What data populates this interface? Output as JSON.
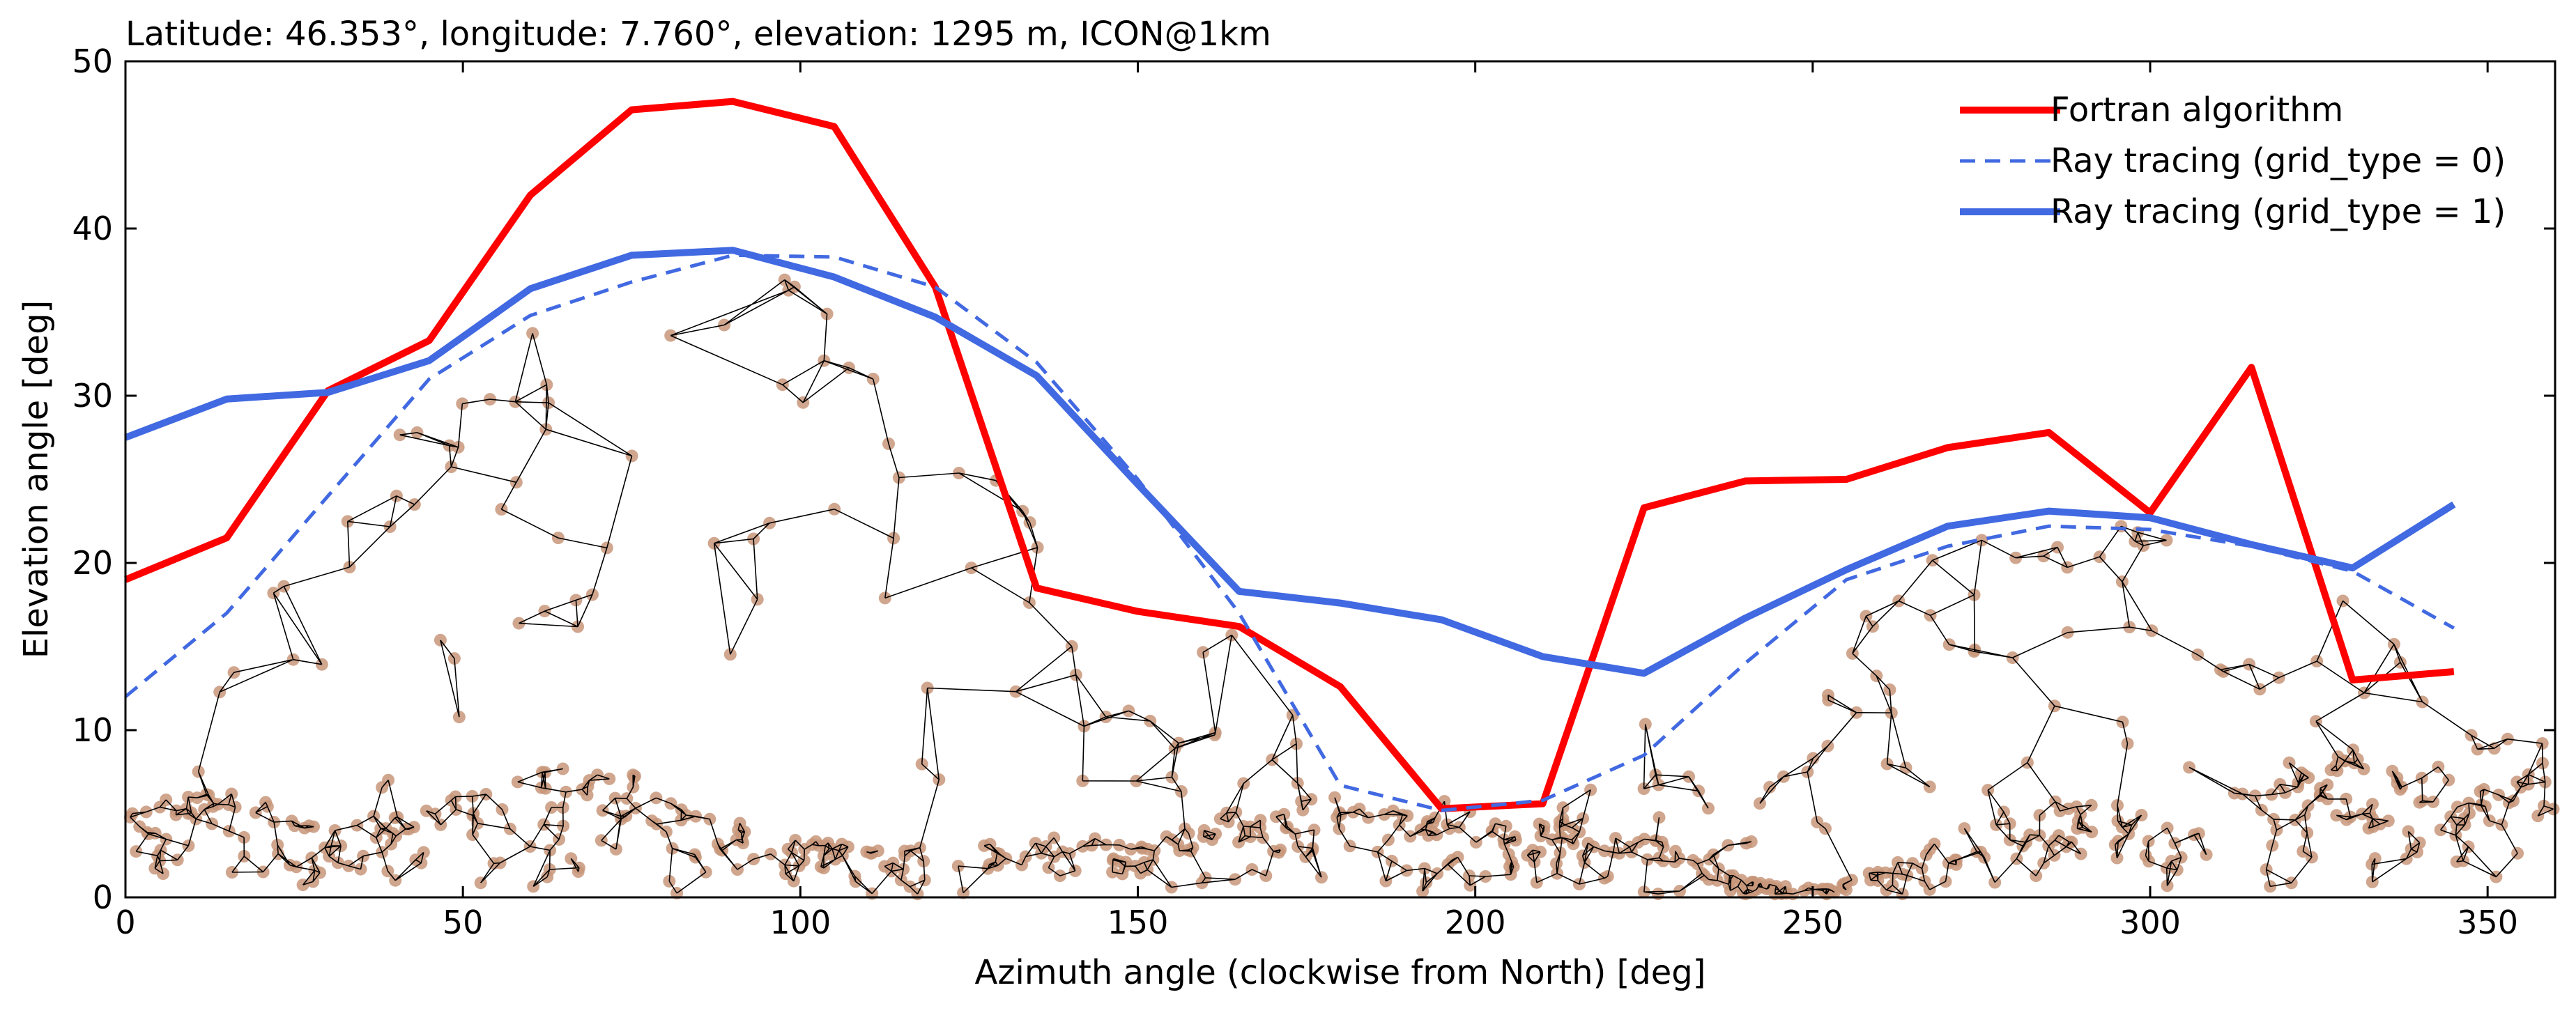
{
  "chart_data": {
    "type": "line",
    "title": "Latitude: 46.353°, longitude: 7.760°, elevation: 1295 m, ICON@1km",
    "xlabel": "Azimuth angle (clockwise from North) [deg]",
    "ylabel": "Elevation angle [deg]",
    "xlim": [
      0,
      360
    ],
    "ylim": [
      0,
      50
    ],
    "xticks": [
      "0",
      "50",
      "100",
      "150",
      "200",
      "250",
      "300",
      "350"
    ],
    "yticks": [
      "0",
      "10",
      "20",
      "30",
      "40",
      "50"
    ],
    "grid": false,
    "legend_position": "top-right",
    "series": [
      {
        "name": "Fortran algorithm",
        "color": "#ff0000",
        "style": "solid",
        "x": [
          0,
          15,
          30,
          45,
          60,
          75,
          90,
          105,
          120,
          135,
          150,
          165,
          180,
          195,
          210,
          225,
          240,
          255,
          270,
          285,
          300,
          315,
          330,
          345
        ],
        "y": [
          19.0,
          21.5,
          30.3,
          33.3,
          42.0,
          47.1,
          47.6,
          46.1,
          36.5,
          18.5,
          17.1,
          16.2,
          12.6,
          5.3,
          5.6,
          23.3,
          24.9,
          25.0,
          26.9,
          27.8,
          23.0,
          31.7,
          13.0,
          13.5
        ]
      },
      {
        "name": "Ray tracing (grid_type = 0)",
        "color": "#4169e1",
        "style": "dashed",
        "x": [
          0,
          15,
          30,
          45,
          60,
          75,
          90,
          105,
          120,
          135,
          150,
          165,
          180,
          195,
          210,
          225,
          240,
          255,
          270,
          285,
          300,
          315,
          330,
          345
        ],
        "y": [
          12.0,
          17.0,
          24.0,
          31.0,
          34.8,
          36.8,
          38.4,
          38.3,
          36.5,
          32.0,
          25.0,
          17.0,
          6.7,
          5.2,
          5.8,
          8.5,
          14.0,
          19.0,
          21.0,
          22.2,
          22.0,
          21.0,
          19.5,
          16.1
        ]
      },
      {
        "name": "Ray tracing (grid_type = 1)",
        "color": "#4169e1",
        "style": "solid",
        "x": [
          0,
          15,
          30,
          45,
          60,
          75,
          90,
          105,
          120,
          135,
          150,
          165,
          180,
          195,
          210,
          225,
          240,
          255,
          270,
          285,
          300,
          315,
          330,
          345
        ],
        "y": [
          27.5,
          29.8,
          30.2,
          32.1,
          36.4,
          38.4,
          38.7,
          37.1,
          34.7,
          31.2,
          24.7,
          18.3,
          17.6,
          16.6,
          14.4,
          13.4,
          16.7,
          19.6,
          22.2,
          23.1,
          22.7,
          21.1,
          19.7,
          23.5
        ]
      }
    ]
  }
}
